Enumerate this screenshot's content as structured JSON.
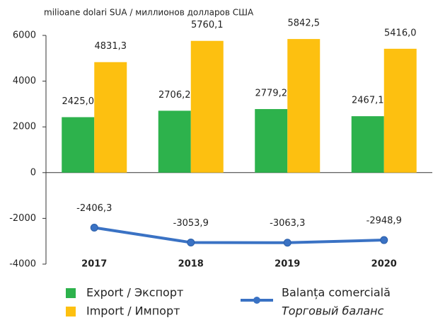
{
  "chart_data": {
    "type": "bar",
    "y_axis_label": "milioane dolari SUA / миллионов долларов США",
    "categories": [
      "2017",
      "2018",
      "2019",
      "2020"
    ],
    "ylim": [
      -4000,
      6000
    ],
    "yticks": [
      -4000,
      -2000,
      0,
      2000,
      4000,
      6000
    ],
    "grid": false,
    "series": [
      {
        "name": "Export / Экспорт",
        "color": "#2db24c",
        "type": "bar",
        "values": [
          2425.0,
          2706.2,
          2779.2,
          2467.1
        ],
        "value_labels": [
          "2425,0",
          "2706,2",
          "2779,2",
          "2467,1"
        ]
      },
      {
        "name": "Import / Импорт",
        "color": "#fdc010",
        "type": "bar",
        "values": [
          4831.3,
          5760.1,
          5842.5,
          5416.0
        ],
        "value_labels": [
          "4831,3",
          "5760,1",
          "5842,5",
          "5416,0"
        ]
      },
      {
        "name": "Balanța comercială",
        "name_ru": "Торговый баланс",
        "color": "#3a72c4",
        "type": "line",
        "values": [
          -2406.3,
          -3053.9,
          -3063.3,
          -2948.9
        ],
        "value_labels": [
          "-2406,3",
          "-3053,9",
          "-3063,3",
          "-2948,9"
        ]
      }
    ]
  }
}
